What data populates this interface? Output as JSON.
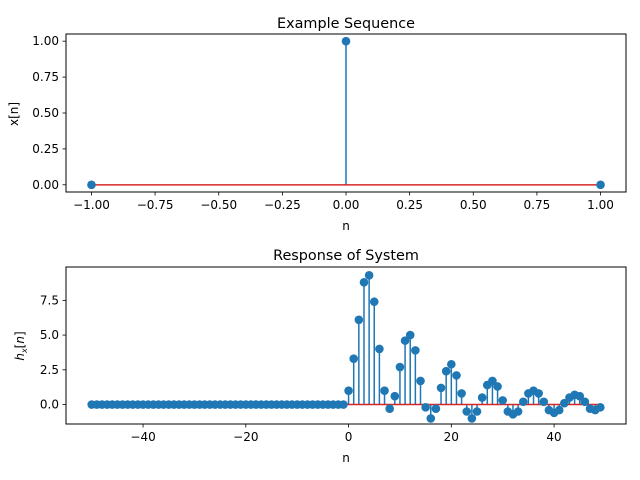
{
  "figure": {
    "background": "#ffffff"
  },
  "chart_data": [
    {
      "type": "stem",
      "title": "Example Sequence",
      "xlabel": "n",
      "ylabel": "x[n]",
      "xlim": [
        -1.1,
        1.1
      ],
      "ylim": [
        -0.05,
        1.05
      ],
      "xticks": [
        -1.0,
        -0.75,
        -0.5,
        -0.25,
        0.0,
        0.25,
        0.5,
        0.75,
        1.0
      ],
      "xtick_labels": [
        "−1.00",
        "−0.75",
        "−0.50",
        "−0.25",
        "0.00",
        "0.25",
        "0.50",
        "0.75",
        "1.00"
      ],
      "yticks": [
        0.0,
        0.25,
        0.5,
        0.75,
        1.0
      ],
      "ytick_labels": [
        "0.00",
        "0.25",
        "0.50",
        "0.75",
        "1.00"
      ],
      "grid": false,
      "legend": "none",
      "colors": {
        "stem": "#1f77b4",
        "baseline": "#d62728"
      },
      "series": [
        {
          "x": [
            -1,
            0,
            1
          ],
          "values": [
            0,
            1,
            0
          ]
        }
      ]
    },
    {
      "type": "stem",
      "title": "Response of System",
      "xlabel": "n",
      "ylabel": "h_x[n]",
      "ylabel_math": true,
      "xlim": [
        -55,
        54
      ],
      "ylim": [
        -1.4,
        9.9
      ],
      "xticks": [
        -40,
        -20,
        0,
        20,
        40
      ],
      "xtick_labels": [
        "−40",
        "−20",
        "0",
        "20",
        "40"
      ],
      "yticks": [
        0.0,
        2.5,
        5.0,
        7.5
      ],
      "ytick_labels": [
        "0.0",
        "2.5",
        "5.0",
        "7.5"
      ],
      "grid": false,
      "legend": "none",
      "colors": {
        "stem": "#1f77b4",
        "baseline": "#d62728"
      },
      "series": [
        {
          "x": [
            -50,
            -49,
            -48,
            -47,
            -46,
            -45,
            -44,
            -43,
            -42,
            -41,
            -40,
            -39,
            -38,
            -37,
            -36,
            -35,
            -34,
            -33,
            -32,
            -31,
            -30,
            -29,
            -28,
            -27,
            -26,
            -25,
            -24,
            -23,
            -22,
            -21,
            -20,
            -19,
            -18,
            -17,
            -16,
            -15,
            -14,
            -13,
            -12,
            -11,
            -10,
            -9,
            -8,
            -7,
            -6,
            -5,
            -4,
            -3,
            -2,
            -1,
            0,
            1,
            2,
            3,
            4,
            5,
            6,
            7,
            8,
            9,
            10,
            11,
            12,
            13,
            14,
            15,
            16,
            17,
            18,
            19,
            20,
            21,
            22,
            23,
            24,
            25,
            26,
            27,
            28,
            29,
            30,
            31,
            32,
            33,
            34,
            35,
            36,
            37,
            38,
            39,
            40,
            41,
            42,
            43,
            44,
            45,
            46,
            47,
            48,
            49
          ],
          "values": [
            0,
            0,
            0,
            0,
            0,
            0,
            0,
            0,
            0,
            0,
            0,
            0,
            0,
            0,
            0,
            0,
            0,
            0,
            0,
            0,
            0,
            0,
            0,
            0,
            0,
            0,
            0,
            0,
            0,
            0,
            0,
            0,
            0,
            0,
            0,
            0,
            0,
            0,
            0,
            0,
            0,
            0,
            0,
            0,
            0,
            0,
            0,
            0,
            0,
            0,
            1.0,
            3.3,
            6.1,
            8.8,
            9.3,
            7.4,
            4.0,
            1.0,
            -0.3,
            0.6,
            2.7,
            4.6,
            5.0,
            3.9,
            1.7,
            -0.2,
            -1.0,
            -0.3,
            1.2,
            2.4,
            2.9,
            2.1,
            0.8,
            -0.5,
            -1.0,
            -0.5,
            0.5,
            1.4,
            1.7,
            1.3,
            0.3,
            -0.5,
            -0.7,
            -0.5,
            0.2,
            0.8,
            1.0,
            0.8,
            0.2,
            -0.4,
            -0.6,
            -0.4,
            0.1,
            0.5,
            0.7,
            0.6,
            0.2,
            -0.3,
            -0.4,
            -0.2
          ]
        }
      ]
    }
  ]
}
